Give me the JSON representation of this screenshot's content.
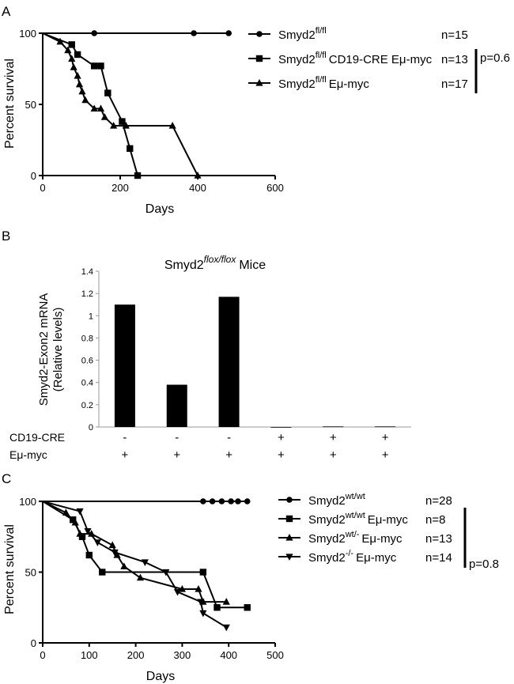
{
  "chart_data": [
    {
      "panel": "A",
      "type": "line",
      "xlabel": "Days",
      "ylabel": "Percent survival",
      "xlim": [
        0,
        600
      ],
      "ylim": [
        0,
        100
      ],
      "xticks": [
        0,
        200,
        400,
        600
      ],
      "yticks": [
        0,
        50,
        100
      ],
      "series": [
        {
          "name_base": "Smyd2",
          "name_sup": "fl/fl",
          "name_rest": "",
          "n": "n=15",
          "marker": "circle",
          "points": [
            [
              0,
              100
            ],
            [
              133,
              100
            ],
            [
              390,
              100
            ],
            [
              480,
              100
            ]
          ]
        },
        {
          "name_base": "Smyd2",
          "name_sup": "fl/fl",
          "name_rest": "CD19-CRE Eμ-myc",
          "n": "n=13",
          "marker": "square",
          "points": [
            [
              0,
              100
            ],
            [
              75,
              92
            ],
            [
              90,
              85
            ],
            [
              133,
              77
            ],
            [
              150,
              77
            ],
            [
              168,
              58
            ],
            [
              205,
              38
            ],
            [
              225,
              19
            ],
            [
              245,
              0
            ]
          ]
        },
        {
          "name_base": "Smyd2",
          "name_sup": "fl/fl",
          "name_rest": "Eμ-myc",
          "n": "n=17",
          "marker": "triangle",
          "points": [
            [
              0,
              100
            ],
            [
              45,
              94
            ],
            [
              65,
              88
            ],
            [
              75,
              82
            ],
            [
              80,
              76
            ],
            [
              90,
              70
            ],
            [
              95,
              64
            ],
            [
              102,
              59
            ],
            [
              110,
              53
            ],
            [
              133,
              47
            ],
            [
              150,
              47
            ],
            [
              160,
              41
            ],
            [
              183,
              35
            ],
            [
              215,
              35
            ],
            [
              335,
              35
            ],
            [
              400,
              0
            ]
          ]
        }
      ],
      "pvalue": "p=0.6"
    },
    {
      "panel": "B",
      "type": "bar",
      "title_base": "Smyd2",
      "title_sup": "flox/flox",
      "title_rest": "Mice",
      "ylabel": "Smyd2-Exon2 mRNA",
      "ylabel2": "(Relative levels)",
      "ylim": [
        0,
        1.4
      ],
      "yticks": [
        "0",
        "0.2",
        "0.4",
        "0.6",
        "0.8",
        "1",
        "1.2",
        "1.4"
      ],
      "values": [
        1.1,
        0.38,
        1.17,
        0.0,
        0.005,
        0.005
      ],
      "row_labels": [
        "CD19-CRE",
        "Eμ-myc"
      ],
      "cre": [
        "-",
        "-",
        "-",
        "+",
        "+",
        "+"
      ],
      "myc": [
        "+",
        "+",
        "+",
        "+",
        "+",
        "+"
      ]
    },
    {
      "panel": "C",
      "type": "line",
      "xlabel": "Days",
      "ylabel": "Percent survival",
      "xlim": [
        0,
        500
      ],
      "ylim": [
        0,
        100
      ],
      "xticks": [
        0,
        100,
        200,
        300,
        400,
        500
      ],
      "yticks": [
        0,
        50,
        100
      ],
      "series": [
        {
          "name_base": "Smyd2",
          "name_sup": "wt/wt",
          "name_rest": "",
          "n": "n=28",
          "marker": "circle",
          "points": [
            [
              0,
              100
            ],
            [
              345,
              100
            ],
            [
              365,
              100
            ],
            [
              385,
              100
            ],
            [
              405,
              100
            ],
            [
              420,
              100
            ],
            [
              440,
              100
            ]
          ]
        },
        {
          "name_base": "Smyd2",
          "name_sup": "wt/wt",
          "name_rest": "Eμ-myc",
          "n": "n=8",
          "marker": "square",
          "points": [
            [
              0,
              100
            ],
            [
              65,
              87
            ],
            [
              85,
              75
            ],
            [
              100,
              62
            ],
            [
              128,
              50
            ],
            [
              345,
              50
            ],
            [
              375,
              25
            ],
            [
              440,
              25
            ]
          ]
        },
        {
          "name_base": "Smyd2",
          "name_sup": "wt/-",
          "name_rest": "Eμ-myc",
          "n": "n=13",
          "marker": "triangle",
          "points": [
            [
              0,
              100
            ],
            [
              50,
              92
            ],
            [
              70,
              85
            ],
            [
              80,
              77
            ],
            [
              105,
              77
            ],
            [
              150,
              69
            ],
            [
              160,
              62
            ],
            [
              175,
              54
            ],
            [
              210,
              46
            ],
            [
              300,
              38
            ],
            [
              335,
              38
            ],
            [
              345,
              29
            ],
            [
              395,
              29
            ]
          ]
        },
        {
          "name_base": "Smyd2",
          "name_sup": "-/-",
          "name_rest": "Eμ-myc",
          "n": "n=14",
          "marker": "triangle-down",
          "points": [
            [
              0,
              100
            ],
            [
              80,
              93
            ],
            [
              97,
              79
            ],
            [
              118,
              71
            ],
            [
              155,
              64
            ],
            [
              220,
              57
            ],
            [
              265,
              50
            ],
            [
              290,
              36
            ],
            [
              340,
              29
            ],
            [
              345,
              21
            ],
            [
              395,
              11
            ]
          ]
        }
      ],
      "pvalue": "p=0.8"
    }
  ],
  "panels": [
    {
      "label": "A"
    },
    {
      "label": "B"
    },
    {
      "label": "C"
    }
  ]
}
